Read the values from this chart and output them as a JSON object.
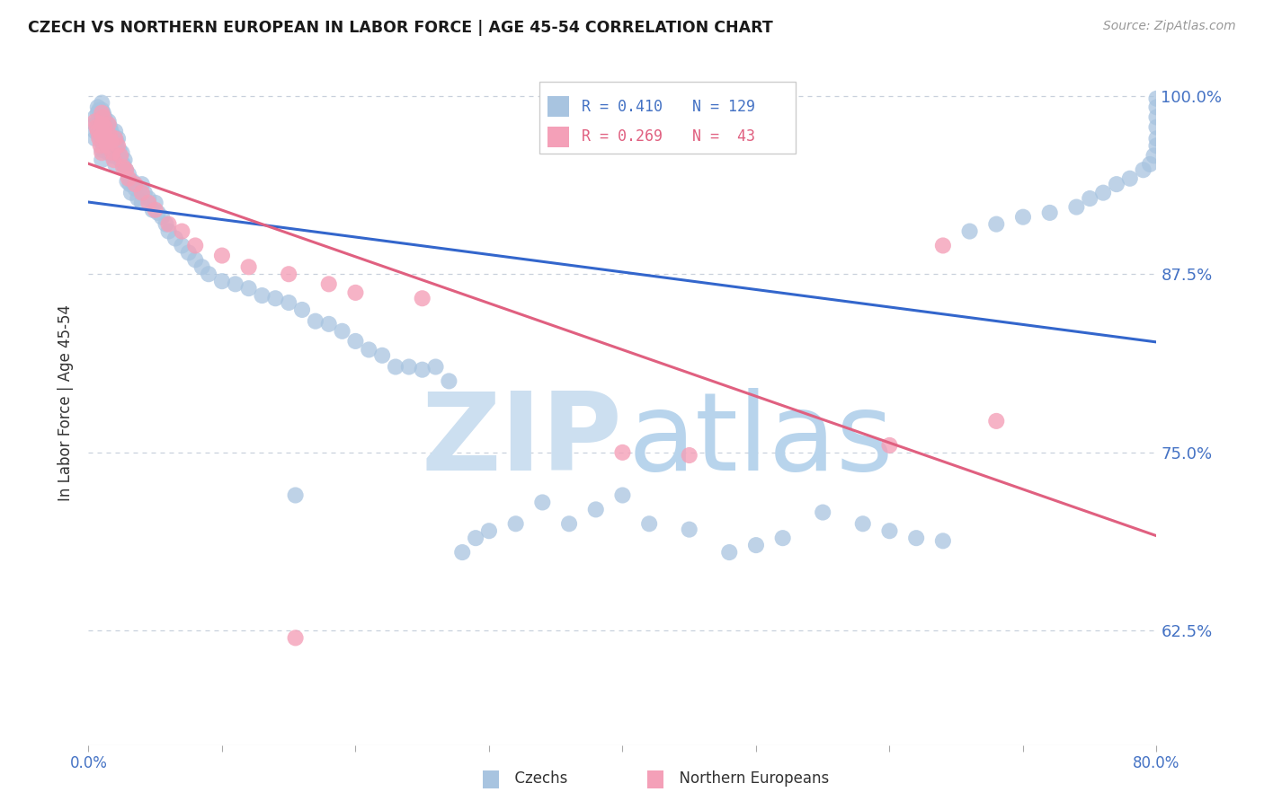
{
  "title": "CZECH VS NORTHERN EUROPEAN IN LABOR FORCE | AGE 45-54 CORRELATION CHART",
  "source": "Source: ZipAtlas.com",
  "ylabel": "In Labor Force | Age 45-54",
  "x_min": 0.0,
  "x_max": 0.8,
  "y_min": 0.545,
  "y_max": 1.025,
  "y_ticks": [
    0.625,
    0.75,
    0.875,
    1.0
  ],
  "y_tick_labels": [
    "62.5%",
    "75.0%",
    "87.5%",
    "100.0%"
  ],
  "x_ticks": [
    0.0,
    0.1,
    0.2,
    0.3,
    0.4,
    0.5,
    0.6,
    0.7,
    0.8
  ],
  "x_tick_labels": [
    "0.0%",
    "",
    "",
    "",
    "",
    "",
    "",
    "",
    "80.0%"
  ],
  "blue_color": "#a8c4e0",
  "blue_line_color": "#3366cc",
  "pink_color": "#f4a0b8",
  "pink_line_color": "#e06080",
  "axis_label_color": "#4472c4",
  "grid_color": "#c8d0dc",
  "watermark_zip_color": "#ccdff0",
  "watermark_atlas_color": "#b8d4ec",
  "legend_r_color_blue": "#4472c4",
  "legend_n_color_blue": "#4472c4",
  "legend_r_color_pink": "#e06080",
  "legend_n_color_pink": "#e06080",
  "czechs_x": [
    0.005,
    0.005,
    0.005,
    0.005,
    0.007,
    0.007,
    0.007,
    0.008,
    0.008,
    0.008,
    0.009,
    0.009,
    0.01,
    0.01,
    0.01,
    0.01,
    0.01,
    0.01,
    0.01,
    0.01,
    0.011,
    0.011,
    0.011,
    0.012,
    0.012,
    0.013,
    0.013,
    0.014,
    0.014,
    0.015,
    0.015,
    0.015,
    0.016,
    0.016,
    0.017,
    0.017,
    0.018,
    0.018,
    0.019,
    0.02,
    0.02,
    0.02,
    0.021,
    0.022,
    0.022,
    0.023,
    0.024,
    0.025,
    0.026,
    0.027,
    0.028,
    0.029,
    0.03,
    0.031,
    0.032,
    0.033,
    0.035,
    0.037,
    0.04,
    0.04,
    0.042,
    0.045,
    0.048,
    0.05,
    0.052,
    0.055,
    0.058,
    0.06,
    0.065,
    0.07,
    0.075,
    0.08,
    0.085,
    0.09,
    0.1,
    0.11,
    0.12,
    0.13,
    0.14,
    0.15,
    0.155,
    0.16,
    0.17,
    0.18,
    0.19,
    0.2,
    0.21,
    0.22,
    0.23,
    0.24,
    0.25,
    0.26,
    0.27,
    0.28,
    0.29,
    0.3,
    0.32,
    0.34,
    0.36,
    0.38,
    0.4,
    0.42,
    0.45,
    0.48,
    0.5,
    0.52,
    0.55,
    0.58,
    0.6,
    0.62,
    0.64,
    0.66,
    0.68,
    0.7,
    0.72,
    0.74,
    0.75,
    0.76,
    0.77,
    0.78,
    0.79,
    0.795,
    0.798,
    0.8,
    0.8,
    0.8,
    0.8,
    0.8,
    0.8
  ],
  "czechs_y": [
    0.985,
    0.98,
    0.975,
    0.97,
    0.992,
    0.988,
    0.975,
    0.99,
    0.982,
    0.972,
    0.985,
    0.978,
    0.995,
    0.99,
    0.985,
    0.98,
    0.975,
    0.968,
    0.962,
    0.955,
    0.988,
    0.98,
    0.972,
    0.985,
    0.975,
    0.982,
    0.97,
    0.978,
    0.965,
    0.982,
    0.972,
    0.96,
    0.978,
    0.965,
    0.975,
    0.96,
    0.972,
    0.958,
    0.97,
    0.975,
    0.965,
    0.952,
    0.968,
    0.97,
    0.958,
    0.962,
    0.955,
    0.96,
    0.952,
    0.955,
    0.948,
    0.94,
    0.945,
    0.938,
    0.932,
    0.94,
    0.935,
    0.928,
    0.938,
    0.925,
    0.932,
    0.928,
    0.92,
    0.925,
    0.918,
    0.915,
    0.91,
    0.905,
    0.9,
    0.895,
    0.89,
    0.885,
    0.88,
    0.875,
    0.87,
    0.868,
    0.865,
    0.86,
    0.858,
    0.855,
    0.72,
    0.85,
    0.842,
    0.84,
    0.835,
    0.828,
    0.822,
    0.818,
    0.81,
    0.81,
    0.808,
    0.81,
    0.8,
    0.68,
    0.69,
    0.695,
    0.7,
    0.715,
    0.7,
    0.71,
    0.72,
    0.7,
    0.696,
    0.68,
    0.685,
    0.69,
    0.708,
    0.7,
    0.695,
    0.69,
    0.688,
    0.905,
    0.91,
    0.915,
    0.918,
    0.922,
    0.928,
    0.932,
    0.938,
    0.942,
    0.948,
    0.952,
    0.958,
    0.965,
    0.97,
    0.978,
    0.985,
    0.992,
    0.998
  ],
  "north_eu_x": [
    0.005,
    0.006,
    0.007,
    0.008,
    0.009,
    0.01,
    0.01,
    0.01,
    0.01,
    0.011,
    0.012,
    0.013,
    0.014,
    0.015,
    0.016,
    0.017,
    0.018,
    0.019,
    0.02,
    0.022,
    0.024,
    0.026,
    0.028,
    0.03,
    0.035,
    0.04,
    0.045,
    0.05,
    0.06,
    0.07,
    0.08,
    0.1,
    0.12,
    0.15,
    0.18,
    0.2,
    0.25,
    0.4,
    0.45,
    0.6,
    0.155,
    0.64,
    0.68
  ],
  "north_eu_y": [
    0.982,
    0.978,
    0.975,
    0.97,
    0.965,
    0.988,
    0.98,
    0.972,
    0.96,
    0.985,
    0.978,
    0.97,
    0.965,
    0.98,
    0.972,
    0.968,
    0.96,
    0.955,
    0.97,
    0.965,
    0.958,
    0.95,
    0.948,
    0.942,
    0.938,
    0.932,
    0.925,
    0.92,
    0.91,
    0.905,
    0.895,
    0.888,
    0.88,
    0.875,
    0.868,
    0.862,
    0.858,
    0.75,
    0.748,
    0.755,
    0.62,
    0.895,
    0.772
  ]
}
